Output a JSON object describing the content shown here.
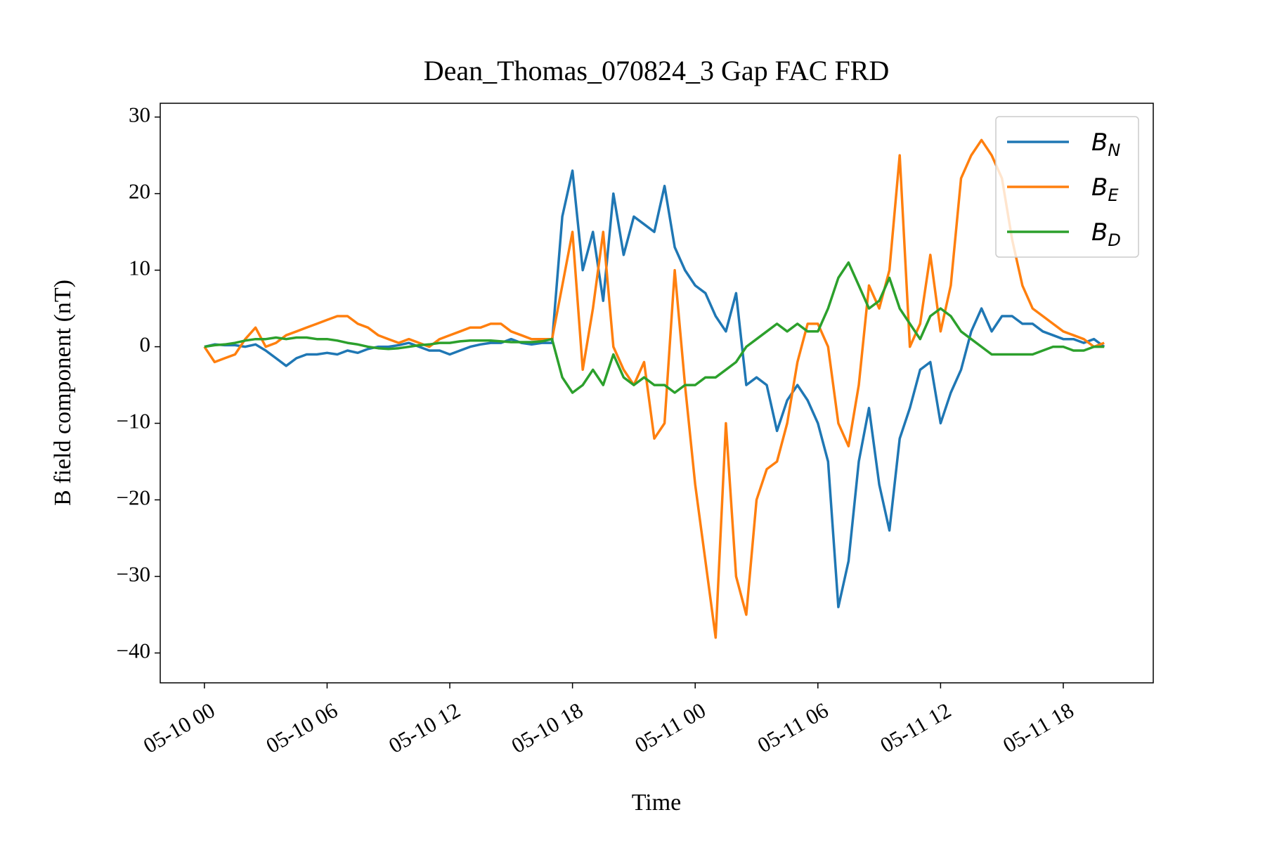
{
  "chart_data": {
    "type": "line",
    "title": "Dean_Thomas_070824_3 Gap FAC FRD",
    "xlabel": "Time",
    "ylabel": "B field component (nT)",
    "x": [
      0,
      0.5,
      1,
      1.5,
      2,
      2.5,
      3,
      3.5,
      4,
      4.5,
      5,
      5.5,
      6,
      6.5,
      7,
      7.5,
      8,
      8.5,
      9,
      9.5,
      10,
      10.5,
      11,
      11.5,
      12,
      12.5,
      13,
      13.5,
      14,
      14.5,
      15,
      15.5,
      16,
      16.5,
      17,
      17.5,
      18,
      18.5,
      19,
      19.5,
      20,
      20.5,
      21,
      21.5,
      22,
      22.5,
      23,
      23.5,
      24,
      24.5,
      25,
      25.5,
      26,
      26.5,
      27,
      27.5,
      28,
      28.5,
      29,
      29.5,
      30,
      30.5,
      31,
      31.5,
      32,
      32.5,
      33,
      33.5,
      34,
      34.5,
      35,
      35.5,
      36,
      36.5,
      37,
      37.5,
      38,
      38.5,
      39,
      39.5,
      40,
      40.5,
      41,
      41.5,
      42,
      42.5,
      43,
      43.5,
      44
    ],
    "series": [
      {
        "name": "BN",
        "color": "#1f77b4",
        "values": [
          0,
          0.3,
          0.2,
          0.2,
          0,
          0.3,
          -0.5,
          -1.5,
          -2.5,
          -1.5,
          -1,
          -1,
          -0.8,
          -1,
          -0.5,
          -0.8,
          -0.3,
          0,
          0,
          0.2,
          0.5,
          0,
          -0.5,
          -0.5,
          -1,
          -0.5,
          0,
          0.3,
          0.5,
          0.5,
          1,
          0.5,
          0.3,
          0.5,
          0.5,
          17,
          23,
          10,
          15,
          6,
          20,
          12,
          17,
          16,
          15,
          21,
          13,
          10,
          8,
          7,
          4,
          2,
          7,
          -5,
          -4,
          -5,
          -11,
          -7,
          -5,
          -7,
          -10,
          -15,
          -34,
          -28,
          -15,
          -8,
          -18,
          -24,
          -12,
          -8,
          -3,
          -2,
          -10,
          -6,
          -3,
          2,
          5,
          2,
          4,
          4,
          3,
          3,
          2,
          1.5,
          1,
          1,
          0.5,
          1,
          0
        ]
      },
      {
        "name": "BE",
        "color": "#ff7f0e",
        "values": [
          0,
          -2,
          -1.5,
          -1,
          1,
          2.5,
          0,
          0.5,
          1.5,
          2,
          2.5,
          3,
          3.5,
          4,
          4,
          3,
          2.5,
          1.5,
          1,
          0.5,
          1,
          0.5,
          0,
          1,
          1.5,
          2,
          2.5,
          2.5,
          3,
          3,
          2,
          1.5,
          1,
          1,
          1,
          8,
          15,
          -3,
          5,
          15,
          0,
          -3,
          -5,
          -2,
          -12,
          -10,
          10,
          -5,
          -18,
          -28,
          -38,
          -10,
          -30,
          -35,
          -20,
          -16,
          -15,
          -10,
          -2,
          3,
          3,
          0,
          -10,
          -13,
          -5,
          8,
          5,
          10,
          25,
          0,
          3,
          12,
          2,
          8,
          22,
          25,
          27,
          25,
          22,
          14,
          8,
          5,
          4,
          3,
          2,
          1.5,
          1,
          0,
          0.5
        ]
      },
      {
        "name": "BD",
        "color": "#2ca02c",
        "values": [
          0,
          0.2,
          0.3,
          0.5,
          0.8,
          1,
          1,
          1.2,
          1,
          1.2,
          1.2,
          1,
          1,
          0.8,
          0.5,
          0.3,
          0,
          -0.2,
          -0.3,
          -0.2,
          0,
          0.2,
          0.3,
          0.5,
          0.5,
          0.7,
          0.8,
          0.8,
          0.8,
          0.7,
          0.6,
          0.6,
          0.6,
          0.7,
          1,
          -4,
          -6,
          -5,
          -3,
          -5,
          -1,
          -4,
          -5,
          -4,
          -5,
          -5,
          -6,
          -5,
          -5,
          -4,
          -4,
          -3,
          -2,
          0,
          1,
          2,
          3,
          2,
          3,
          2,
          2,
          5,
          9,
          11,
          8,
          5,
          6,
          9,
          5,
          3,
          1,
          4,
          5,
          4,
          2,
          1,
          0,
          -1,
          -1,
          -1,
          -1,
          -1,
          -0.5,
          0,
          0,
          -0.5,
          -0.5,
          0,
          0
        ]
      }
    ],
    "xlim": [
      -2.16,
      46.4
    ],
    "ylim": [
      -43.9,
      31.8
    ],
    "xticks": [
      {
        "value": 0,
        "label": "05-10 00"
      },
      {
        "value": 6,
        "label": "05-10 06"
      },
      {
        "value": 12,
        "label": "05-10 12"
      },
      {
        "value": 18,
        "label": "05-10 18"
      },
      {
        "value": 24,
        "label": "05-11 00"
      },
      {
        "value": 30,
        "label": "05-11 06"
      },
      {
        "value": 36,
        "label": "05-11 12"
      },
      {
        "value": 42,
        "label": "05-11 18"
      }
    ],
    "yticks": [
      {
        "value": -40,
        "label": "−40"
      },
      {
        "value": -30,
        "label": "−30"
      },
      {
        "value": -20,
        "label": "−20"
      },
      {
        "value": -10,
        "label": "−10"
      },
      0,
      10,
      20,
      30
    ],
    "grid": false,
    "legend": "upper-right"
  }
}
